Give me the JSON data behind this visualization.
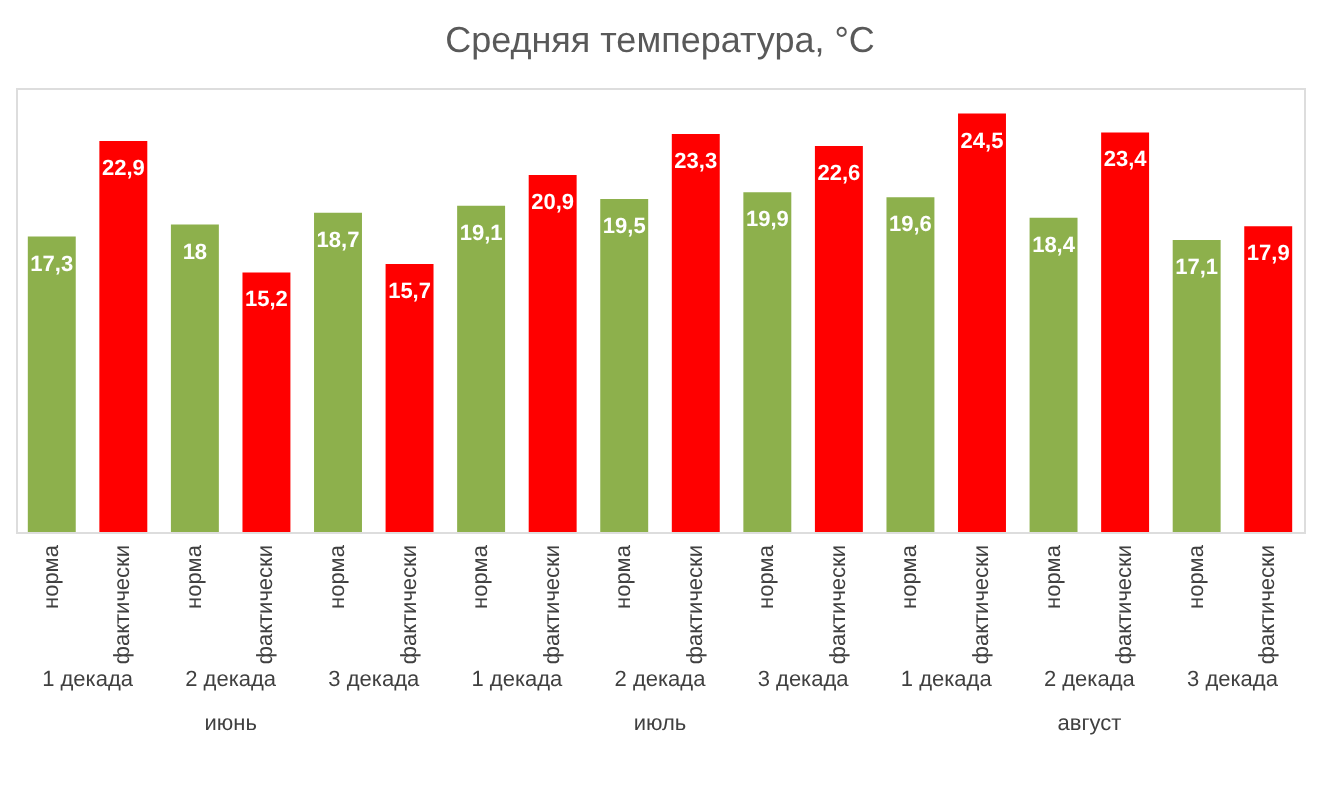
{
  "chart_data": {
    "type": "bar",
    "title": "Средняя температура, °C",
    "categories": [
      "норма",
      "фактически",
      "норма",
      "фактически",
      "норма",
      "фактически",
      "норма",
      "фактически",
      "норма",
      "фактически",
      "норма",
      "фактически",
      "норма",
      "фактически",
      "норма",
      "фактически",
      "норма",
      "фактически"
    ],
    "values": [
      17.3,
      22.9,
      18,
      15.2,
      18.7,
      15.7,
      19.1,
      20.9,
      19.5,
      23.3,
      19.9,
      22.6,
      19.6,
      24.5,
      18.4,
      23.4,
      17.1,
      17.9
    ],
    "value_labels": [
      "17,3",
      "22,9",
      "18",
      "15,2",
      "18,7",
      "15,7",
      "19,1",
      "20,9",
      "19,5",
      "23,3",
      "19,9",
      "22,6",
      "19,6",
      "24,5",
      "18,4",
      "23,4",
      "17,1",
      "17,9"
    ],
    "colors": [
      "#8db04c",
      "#ff0000",
      "#8db04c",
      "#ff0000",
      "#8db04c",
      "#ff0000",
      "#8db04c",
      "#ff0000",
      "#8db04c",
      "#ff0000",
      "#8db04c",
      "#ff0000",
      "#8db04c",
      "#ff0000",
      "#8db04c",
      "#ff0000",
      "#8db04c",
      "#ff0000"
    ],
    "annotations": [
      "1 декада",
      "2 декада",
      "3 декада",
      "1 декада",
      "2 декада",
      "3 декада",
      "1 декада",
      "2 декада",
      "3 декада",
      "июнь",
      "июль",
      "август"
    ],
    "grid": false
  }
}
